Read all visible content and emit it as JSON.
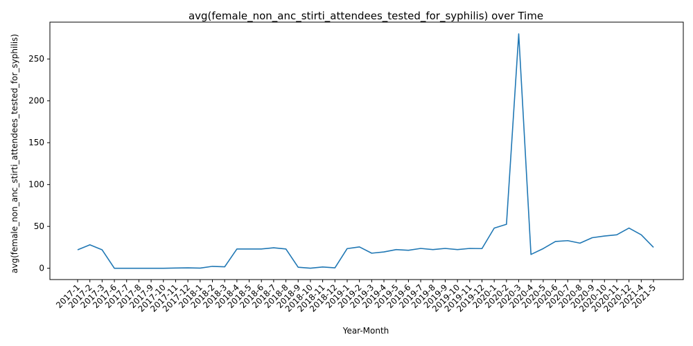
{
  "chart_data": {
    "type": "line",
    "title": "avg(female_non_anc_stirti_attendees_tested_for_syphilis) over Time",
    "xlabel": "Year-Month",
    "ylabel": "avg(female_non_anc_stirti_attendees_tested_for_syphilis)",
    "categories": [
      "2017-1",
      "2017-2",
      "2017-3",
      "2017-6",
      "2017-7",
      "2017-8",
      "2017-9",
      "2017-10",
      "2017-11",
      "2017-12",
      "2018-1",
      "2018-2",
      "2018-3",
      "2018-4",
      "2018-5",
      "2018-6",
      "2018-7",
      "2018-8",
      "2018-9",
      "2018-10",
      "2018-11",
      "2018-12",
      "2019-1",
      "2019-2",
      "2019-3",
      "2019-4",
      "2019-5",
      "2019-6",
      "2019-7",
      "2019-8",
      "2019-9",
      "2019-10",
      "2019-11",
      "2019-12",
      "2020-1",
      "2020-2",
      "2020-3",
      "2020-4",
      "2020-5",
      "2020-6",
      "2020-7",
      "2020-8",
      "2020-9",
      "2020-10",
      "2020-11",
      "2020-12",
      "2021-4",
      "2021-5"
    ],
    "series": [
      {
        "values": [
          22,
          28,
          22,
          0,
          0,
          0,
          0,
          0,
          0.3,
          0.5,
          0.2,
          2.3,
          1.7,
          23,
          23,
          23,
          24.5,
          23,
          1.2,
          0.1,
          1.5,
          0.5,
          23.5,
          25.5,
          18,
          19.5,
          22.3,
          21.5,
          23.7,
          22.3,
          23.7,
          22.3,
          23.7,
          23.5,
          48,
          52.5,
          280,
          16.5,
          23.5,
          32,
          33,
          30,
          36.5,
          38.5,
          40,
          48,
          40,
          25
        ],
        "color": "#1f77b4"
      }
    ],
    "yticks": [
      0,
      50,
      100,
      150,
      200,
      250
    ],
    "ylim": [
      -13.5,
      294
    ],
    "grid": false,
    "legend": "none"
  }
}
